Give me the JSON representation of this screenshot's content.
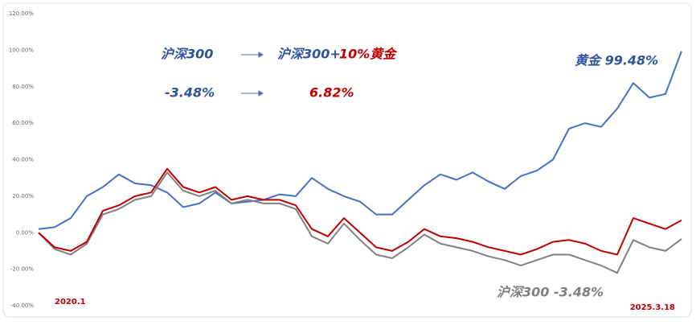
{
  "chart_data": {
    "type": "line",
    "categories": [
      "2020.1",
      null,
      null,
      null,
      null,
      null,
      null,
      null,
      null,
      null,
      null,
      null,
      null,
      null,
      null,
      null,
      null,
      null,
      null,
      null,
      null,
      null,
      null,
      null,
      null,
      null,
      null,
      null,
      null,
      null,
      null,
      null,
      null,
      null,
      null,
      null,
      null,
      null,
      null,
      null,
      "2025.3.18"
    ],
    "category_color": "#c00000",
    "series": [
      {
        "color": "#4472c4",
        "values": [
          2,
          3,
          8,
          20,
          25,
          32,
          27,
          26,
          22,
          14,
          16,
          22,
          16,
          17,
          18,
          21,
          20,
          30,
          24,
          20,
          17,
          10,
          10,
          18,
          26,
          32,
          29,
          33,
          28,
          24,
          31,
          34,
          40,
          57,
          60,
          58,
          68,
          82,
          74,
          76,
          99.48
        ]
      },
      {
        "color": "#808080",
        "values": [
          0,
          -9,
          -12,
          -6,
          10,
          13,
          18,
          20,
          33,
          23,
          20,
          23,
          16,
          18,
          16,
          16,
          13,
          -2,
          -6,
          5,
          -4,
          -12,
          -14,
          -8,
          -1,
          -6,
          -8,
          -10,
          -13,
          -15,
          -18,
          -15,
          -12,
          -12,
          -15,
          -18,
          -22,
          -4,
          -8,
          -10,
          -3.48
        ]
      },
      {
        "color": "#c00000",
        "values": [
          0,
          -8,
          -10,
          -5,
          12,
          15,
          20,
          22,
          35,
          25,
          22,
          25,
          18,
          20,
          18,
          18,
          15,
          2,
          -2,
          8,
          0,
          -8,
          -10,
          -5,
          2,
          -2,
          -3,
          -5,
          -8,
          -10,
          -12,
          -9,
          -5,
          -4,
          -6,
          -10,
          -12,
          8,
          5,
          2,
          6.82
        ]
      }
    ],
    "ylim": [
      -40,
      120
    ],
    "yticks": [
      {
        "value": -40,
        "label": "-40.00%"
      },
      {
        "value": -20,
        "label": "-20.00%"
      },
      {
        "value": 0,
        "label": "0.00%"
      },
      {
        "value": 20,
        "label": "20.00%"
      },
      {
        "value": 40,
        "label": "40.00%"
      },
      {
        "value": 60,
        "label": "60.00%"
      },
      {
        "value": 80,
        "label": "80.00%"
      },
      {
        "value": 100,
        "label": "100.00%"
      },
      {
        "value": 120,
        "label": "120.00%"
      }
    ],
    "annotations": [
      {
        "text": "沪深300",
        "color": "#2f5597"
      },
      {
        "text": "沪深300+",
        "color": "#2f5597"
      },
      {
        "text": "10%黄金",
        "color": "#c00000"
      },
      {
        "text": "-3.48%",
        "color": "#2f5597"
      },
      {
        "text": "6.82%",
        "color": "#c00000"
      },
      {
        "text": "黄金 99.48%",
        "color": "#2f5597"
      },
      {
        "text": "沪深300 -3.48%",
        "color": "#7f7f7f"
      }
    ]
  }
}
